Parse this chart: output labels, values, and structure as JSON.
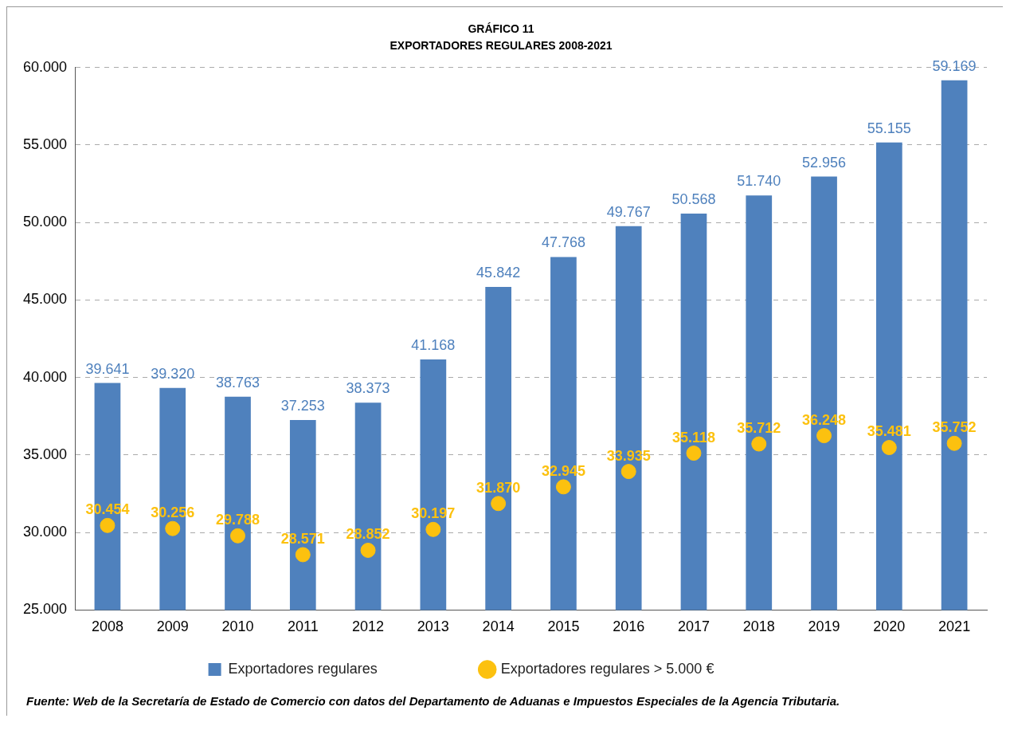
{
  "chart_data": {
    "type": "bar",
    "title": "GRÁFICO 11",
    "subtitle": "EXPORTADORES REGULARES 2008-2021",
    "categories": [
      "2008",
      "2009",
      "2010",
      "2011",
      "2012",
      "2013",
      "2014",
      "2015",
      "2016",
      "2017",
      "2018",
      "2019",
      "2020",
      "2021"
    ],
    "series": [
      {
        "name": "Exportadores regulares",
        "color": "#4f81bd",
        "values": [
          39641,
          39320,
          38763,
          37253,
          38373,
          41168,
          45842,
          47768,
          49767,
          50568,
          51740,
          52956,
          55155,
          59169
        ],
        "value_labels": [
          "39.641",
          "39.320",
          "38.763",
          "37.253",
          "38.373",
          "41.168",
          "45.842",
          "47.768",
          "49.767",
          "50.568",
          "51.740",
          "52.956",
          "55.155",
          "59.169"
        ]
      },
      {
        "name": "Exportadores regulares > 5.000 €",
        "type": "scatter",
        "color": "#fcc10f",
        "marker": "circle",
        "values": [
          30454,
          30256,
          29788,
          28571,
          28852,
          30197,
          31870,
          32945,
          33935,
          35118,
          35712,
          36248,
          35481,
          35752
        ],
        "value_labels": [
          "30.454",
          "30.256",
          "29.788",
          "28.571",
          "28.852",
          "30.197",
          "31.870",
          "32.945",
          "33.935",
          "35.118",
          "35.712",
          "36.248",
          "35.481",
          "35.752"
        ]
      }
    ],
    "ylim": [
      25000,
      60000
    ],
    "yticks": [
      {
        "value": 25000,
        "label": "25.000"
      },
      {
        "value": 30000,
        "label": "30.000"
      },
      {
        "value": 35000,
        "label": "35.000"
      },
      {
        "value": 40000,
        "label": "40.000"
      },
      {
        "value": 45000,
        "label": "45.000"
      },
      {
        "value": 50000,
        "label": "50.000"
      },
      {
        "value": 55000,
        "label": "55.000"
      },
      {
        "value": 60000,
        "label": "60.000"
      }
    ],
    "grid": "y",
    "legend": "bottom",
    "annotations": [
      "Fuente: Web de la Secretaría de Estado de Comercio con datos del Departamento de Aduanas e Impuestos Especiales de la Agencia Tributaria."
    ]
  }
}
